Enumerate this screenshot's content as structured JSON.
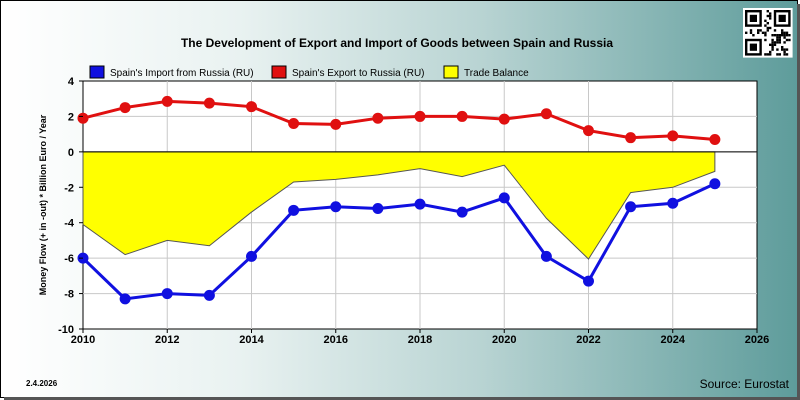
{
  "chart_data": {
    "type": "line",
    "title": "The Development of Export and Import of Goods between Spain and Russia",
    "ylabel": "Money Flow (+ in -out) * Billion Euro / Year",
    "xlabel": "",
    "xlim": [
      2010,
      2026
    ],
    "ylim": [
      -10,
      4
    ],
    "x_ticks": [
      "2010",
      "2012",
      "2014",
      "2016",
      "2018",
      "2020",
      "2022",
      "2024",
      "2026"
    ],
    "y_ticks": [
      "4",
      "2",
      "0",
      "-2",
      "-4",
      "-6",
      "-8",
      "-10"
    ],
    "x": [
      2010,
      2011,
      2012,
      2013,
      2014,
      2015,
      2016,
      2017,
      2018,
      2019,
      2020,
      2021,
      2022,
      2023,
      2024,
      2025
    ],
    "series": [
      {
        "name": "Spain's Import from Russia (RU)",
        "color": "#1010e0",
        "values": [
          -6.0,
          -8.3,
          -8.0,
          -8.1,
          -5.9,
          -3.3,
          -3.1,
          -3.2,
          -2.95,
          -3.4,
          -2.6,
          -5.9,
          -7.3,
          -3.1,
          -2.9,
          -1.8
        ]
      },
      {
        "name": "Spain's Export to Russia (RU)",
        "color": "#e01010",
        "values": [
          1.9,
          2.5,
          2.85,
          2.75,
          2.55,
          1.6,
          1.55,
          1.9,
          2.0,
          2.0,
          1.85,
          2.15,
          1.2,
          0.8,
          0.9,
          0.7
        ]
      },
      {
        "name": "Trade Balance",
        "color": "#ffff00",
        "values": [
          -4.1,
          -5.8,
          -5.0,
          -5.3,
          -3.4,
          -1.7,
          -1.55,
          -1.3,
          -0.95,
          -1.4,
          -0.75,
          -3.75,
          -6.05,
          -2.3,
          -2.0,
          -1.1
        ]
      }
    ],
    "legend_position": "top"
  },
  "date_label": "2.4.2026",
  "source_label": "Source: Eurostat",
  "qr_icon": "qr-code-icon"
}
